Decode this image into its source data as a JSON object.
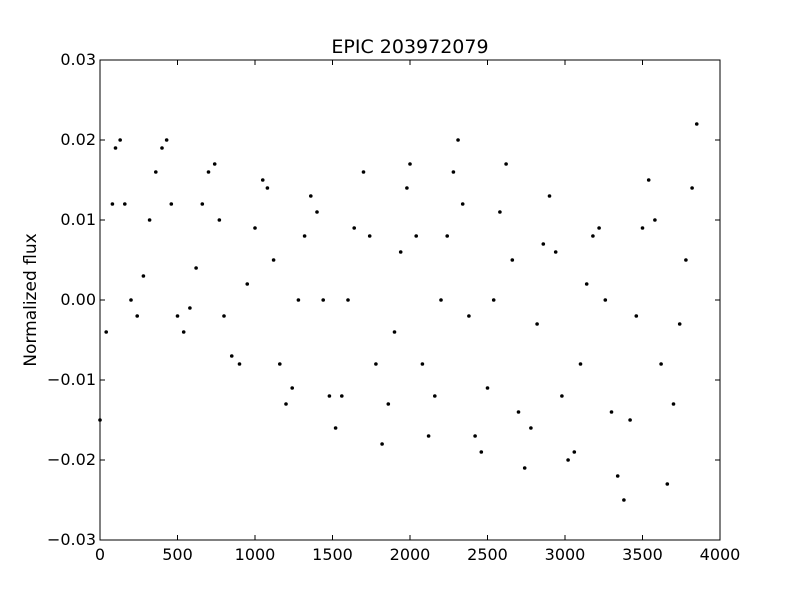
{
  "chart_data": {
    "type": "scatter",
    "title": "EPIC 203972079",
    "xlabel": "",
    "ylabel": "Normalized flux",
    "xlim": [
      0,
      4000
    ],
    "ylim": [
      -0.03,
      0.03
    ],
    "grid": false,
    "legend": "none",
    "x_ticks": [
      0,
      500,
      1000,
      1500,
      2000,
      2500,
      3000,
      3500,
      4000
    ],
    "x_tick_labels": [
      "0",
      "500",
      "1000",
      "1500",
      "2000",
      "2500",
      "3000",
      "3500",
      "4000"
    ],
    "y_ticks": [
      0.03,
      0.02,
      0.01,
      0.0,
      -0.01,
      -0.02,
      -0.03
    ],
    "y_tick_labels": [
      "0.03",
      "0.02",
      "0.01",
      "0.00",
      "−0.01",
      "−0.02",
      "−0.03"
    ],
    "marker_color": "#000000",
    "series": [
      {
        "name": "flux",
        "x": [
          0,
          40,
          80,
          100,
          130,
          160,
          200,
          240,
          280,
          320,
          360,
          400,
          430,
          460,
          500,
          540,
          580,
          620,
          660,
          700,
          740,
          770,
          800,
          850,
          900,
          950,
          1000,
          1050,
          1080,
          1120,
          1160,
          1200,
          1240,
          1280,
          1320,
          1360,
          1400,
          1440,
          1480,
          1520,
          1560,
          1600,
          1640,
          1700,
          1740,
          1780,
          1820,
          1860,
          1900,
          1940,
          1980,
          2000,
          2040,
          2080,
          2120,
          2160,
          2200,
          2240,
          2280,
          2310,
          2340,
          2380,
          2420,
          2460,
          2500,
          2540,
          2580,
          2620,
          2660,
          2700,
          2740,
          2780,
          2820,
          2860,
          2900,
          2940,
          2980,
          3020,
          3060,
          3100,
          3140,
          3180,
          3220,
          3260,
          3300,
          3340,
          3380,
          3420,
          3460,
          3500,
          3540,
          3580,
          3620,
          3660,
          3700,
          3740,
          3780,
          3820,
          3850
        ],
        "y": [
          -0.015,
          -0.004,
          0.012,
          0.019,
          0.02,
          0.012,
          0.0,
          -0.002,
          0.003,
          0.01,
          0.016,
          0.019,
          0.02,
          0.012,
          -0.002,
          -0.004,
          -0.001,
          0.004,
          0.012,
          0.016,
          0.017,
          0.01,
          -0.002,
          -0.007,
          -0.008,
          0.002,
          0.009,
          0.015,
          0.014,
          0.005,
          -0.008,
          -0.013,
          -0.011,
          0.0,
          0.008,
          0.013,
          0.011,
          0.0,
          -0.012,
          -0.016,
          -0.012,
          0.0,
          0.009,
          0.016,
          0.008,
          -0.008,
          -0.018,
          -0.013,
          -0.004,
          0.006,
          0.014,
          0.017,
          0.008,
          -0.008,
          -0.017,
          -0.012,
          0.0,
          0.008,
          0.016,
          0.02,
          0.012,
          -0.002,
          -0.017,
          -0.019,
          -0.011,
          0.0,
          0.011,
          0.017,
          0.005,
          -0.014,
          -0.021,
          -0.016,
          -0.003,
          0.007,
          0.013,
          0.006,
          -0.012,
          -0.02,
          -0.019,
          -0.008,
          0.002,
          0.008,
          0.009,
          0.0,
          -0.014,
          -0.022,
          -0.025,
          -0.015,
          -0.002,
          0.009,
          0.015,
          0.01,
          -0.008,
          -0.023,
          -0.013,
          -0.003,
          0.005,
          0.014,
          0.022
        ]
      }
    ]
  }
}
